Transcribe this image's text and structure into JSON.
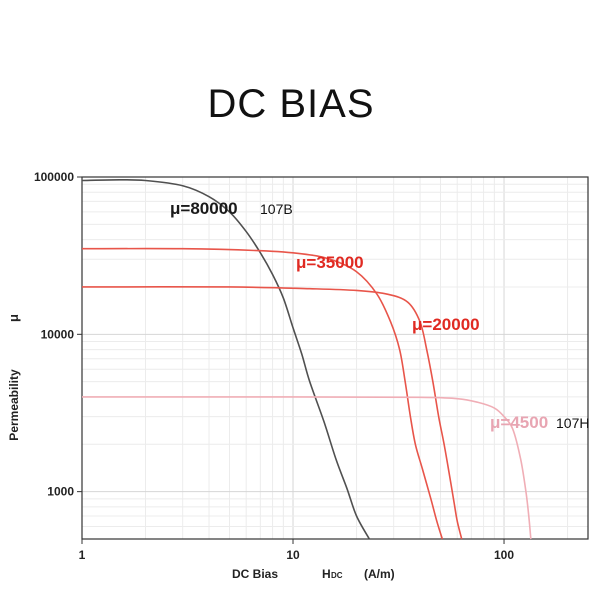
{
  "title": "DC BIAS",
  "chart_data": {
    "type": "line",
    "xscale": "log",
    "yscale": "log",
    "xlim": [
      1,
      250
    ],
    "ylim": [
      500,
      100000
    ],
    "xticks": [
      {
        "value": 1,
        "label": "1"
      },
      {
        "value": 10,
        "label": "10"
      },
      {
        "value": 100,
        "label": "100"
      }
    ],
    "yticks": [
      {
        "value": 1000,
        "label": "1000"
      },
      {
        "value": 10000,
        "label": "10000"
      },
      {
        "value": 100000,
        "label": "100000"
      }
    ],
    "xlabel": {
      "prefix": "DC  Bias",
      "h": "H",
      "sub": "DC",
      "unit": "(A/m)"
    },
    "ylabel": {
      "text": "Permeability",
      "symbol": "μ"
    },
    "grid": true,
    "series": [
      {
        "name": "μ=80000",
        "tag": "107B",
        "color": "#505050",
        "name_color": "#1a1a1a",
        "points": [
          [
            1,
            95000
          ],
          [
            1.5,
            96000
          ],
          [
            2,
            95000
          ],
          [
            3,
            88000
          ],
          [
            4,
            75000
          ],
          [
            5,
            60000
          ],
          [
            6,
            45000
          ],
          [
            7,
            33000
          ],
          [
            8,
            24000
          ],
          [
            9,
            17000
          ],
          [
            10,
            11000
          ],
          [
            11,
            7500
          ],
          [
            12,
            5000
          ],
          [
            14,
            2800
          ],
          [
            16,
            1600
          ],
          [
            18,
            1050
          ],
          [
            20,
            700
          ],
          [
            23,
            500
          ]
        ]
      },
      {
        "name": "μ=35000",
        "tag": "",
        "color": "#e8554a",
        "name_color": "#e02a22",
        "points": [
          [
            1,
            35000
          ],
          [
            3,
            35000
          ],
          [
            7,
            34000
          ],
          [
            11,
            32500
          ],
          [
            15,
            30000
          ],
          [
            20,
            25000
          ],
          [
            25,
            18000
          ],
          [
            29,
            12000
          ],
          [
            32,
            8000
          ],
          [
            34,
            5000
          ],
          [
            36,
            3000
          ],
          [
            38,
            2000
          ],
          [
            41,
            1400
          ],
          [
            45,
            900
          ],
          [
            48,
            650
          ],
          [
            51,
            500
          ]
        ]
      },
      {
        "name": "μ=20000",
        "tag": "",
        "color": "#e8554a",
        "name_color": "#e02a22",
        "points": [
          [
            1,
            20000
          ],
          [
            5,
            20000
          ],
          [
            12,
            19500
          ],
          [
            20,
            19000
          ],
          [
            28,
            18000
          ],
          [
            35,
            16000
          ],
          [
            40,
            12000
          ],
          [
            43,
            8000
          ],
          [
            46,
            5000
          ],
          [
            49,
            3000
          ],
          [
            52,
            2000
          ],
          [
            55,
            1300
          ],
          [
            58,
            850
          ],
          [
            60,
            650
          ],
          [
            63,
            500
          ]
        ]
      },
      {
        "name": "μ=4500",
        "tag": "107H",
        "color": "#f0aeb6",
        "name_color": "#e8a5b2",
        "points": [
          [
            1,
            4000
          ],
          [
            10,
            4000
          ],
          [
            40,
            3980
          ],
          [
            60,
            3900
          ],
          [
            75,
            3700
          ],
          [
            90,
            3400
          ],
          [
            100,
            3000
          ],
          [
            110,
            2500
          ],
          [
            120,
            1600
          ],
          [
            127,
            1000
          ],
          [
            131,
            700
          ],
          [
            134,
            500
          ]
        ]
      }
    ]
  }
}
